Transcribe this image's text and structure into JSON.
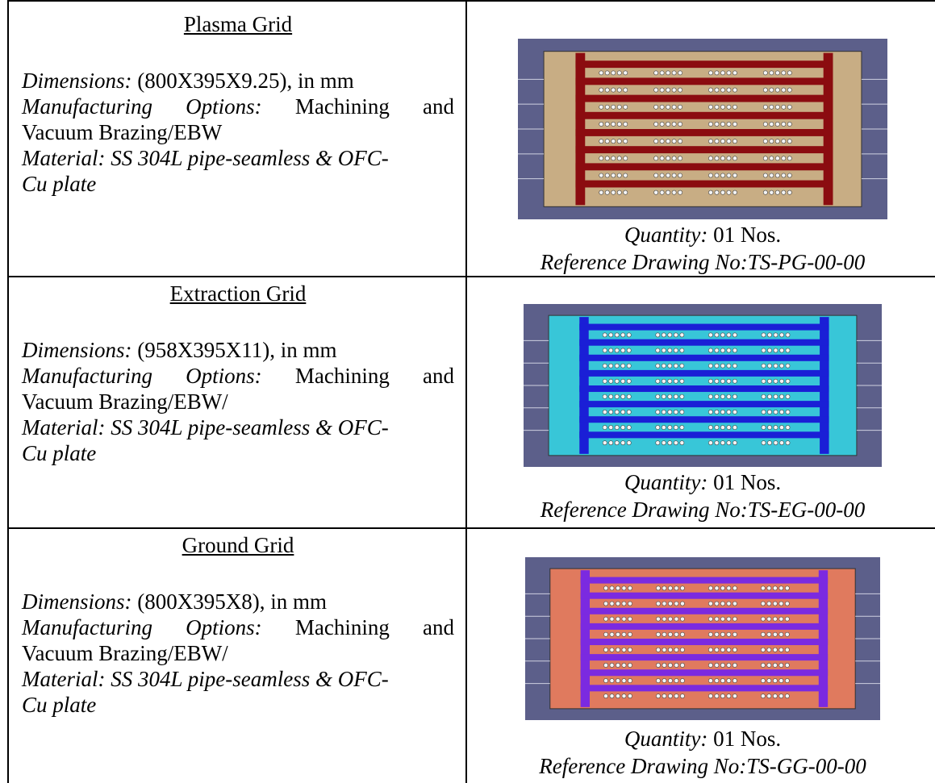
{
  "rows": [
    {
      "title": "Plasma Grid",
      "dimensions_label": "Dimensions:",
      "dimensions_value": " (800X395X9.25), in mm",
      "manufacturing_label": "Manufacturing Options:",
      "manufacturing_value_1": " Machining and",
      "manufacturing_value_2": "Vacuum Brazing/EBW",
      "material_1": "Material: SS 304L pipe-seamless & OFC-",
      "material_2": "Cu plate",
      "quantity_label": "Quantity:",
      "quantity_value": " 01 Nos.",
      "reference": "Reference Drawing No:TS-PG-00-00",
      "colors": {
        "plate": "#c8ad84",
        "channel": "#8b0c10",
        "background": "#5c5f8a"
      }
    },
    {
      "title": "Extraction Grid",
      "dimensions_label": "Dimensions:",
      "dimensions_value": " (958X395X11), in mm",
      "manufacturing_label": "Manufacturing Options:",
      "manufacturing_value_1": " Machining and",
      "manufacturing_value_2": "Vacuum Brazing/EBW/",
      "material_1": "Material: SS 304L pipe-seamless  & OFC-",
      "material_2": "Cu plate",
      "quantity_label": "Quantity:",
      "quantity_value": " 01 Nos.",
      "reference": "Reference Drawing No:TS-EG-00-00",
      "colors": {
        "plate": "#38c6d8",
        "channel": "#1a1fd6",
        "background": "#5c5f8a"
      }
    },
    {
      "title": "Ground Grid",
      "dimensions_label": "Dimensions:",
      "dimensions_value": " (800X395X8), in mm",
      "manufacturing_label": "Manufacturing Options:",
      "manufacturing_value_1": " Machining and",
      "manufacturing_value_2": "Vacuum Brazing/EBW/",
      "material_1": "Material: SS 304L pipe-seamless & OFC-",
      "material_2": "Cu plate",
      "quantity_label": "Quantity:",
      "quantity_value": " 01 Nos.",
      "reference": "Reference Drawing No:TS-GG-00-00",
      "colors": {
        "plate": "#e07a5e",
        "channel": "#7b2ae0",
        "background": "#5c5f8a"
      }
    }
  ]
}
